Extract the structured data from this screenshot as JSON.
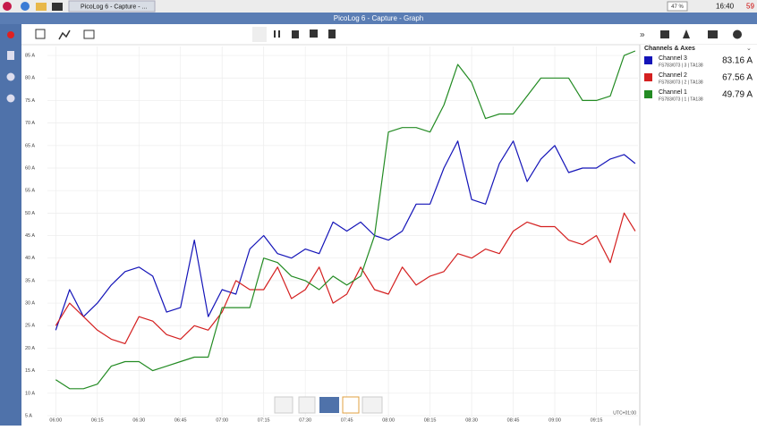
{
  "taskbar": {
    "window_tab": "PicoLog 6 - Capture - ...",
    "battery": "47 %",
    "clock": "16:40",
    "temperature": "59"
  },
  "window_title": "PicoLog 6 - Capture - Graph",
  "panel": {
    "title": "Channels & Axes",
    "channels": [
      {
        "detail": "FS783/073 | 3 | TA138",
        "reading": "83.16 A"
      },
      {
        "detail": "FS783/073 | 2 | TA138",
        "reading": "67.56 A"
      },
      {
        "detail": "FS783/073 | 1 | TA138",
        "reading": "49.79 A"
      }
    ]
  },
  "chart_data": {
    "type": "line",
    "timezone": "UTC+01:00",
    "grid": true,
    "x": [
      "06:00",
      "06:05",
      "06:10",
      "06:15",
      "06:20",
      "06:25",
      "06:30",
      "06:35",
      "06:40",
      "06:45",
      "06:50",
      "06:55",
      "07:00",
      "07:05",
      "07:10",
      "07:15",
      "07:20",
      "07:25",
      "07:30",
      "07:35",
      "07:40",
      "07:45",
      "07:50",
      "07:55",
      "08:00",
      "08:05",
      "08:10",
      "08:15",
      "08:20",
      "08:25",
      "08:30",
      "08:35",
      "08:40",
      "08:45",
      "08:50",
      "08:55",
      "09:00",
      "09:05",
      "09:10",
      "09:15",
      "09:20",
      "09:25",
      "09:29"
    ],
    "xlim": [
      "05:57",
      "09:30"
    ],
    "xticks": [
      "06:00",
      "06:15",
      "06:30",
      "06:45",
      "07:00",
      "07:15",
      "07:30",
      "07:45",
      "08:00",
      "08:15",
      "08:30",
      "08:45",
      "09:00",
      "09:15"
    ],
    "ylim": [
      4.6,
      87
    ],
    "yticks": [
      {
        "value": 5,
        "label": "5 A"
      },
      {
        "value": 10,
        "label": "10 A"
      },
      {
        "value": 15,
        "label": "15 A"
      },
      {
        "value": 20,
        "label": "20 A"
      },
      {
        "value": 25,
        "label": "25 A"
      },
      {
        "value": 30,
        "label": "30 A"
      },
      {
        "value": 35,
        "label": "35 A"
      },
      {
        "value": 40,
        "label": "40 A"
      },
      {
        "value": 45,
        "label": "45 A"
      },
      {
        "value": 50,
        "label": "50 A"
      },
      {
        "value": 55,
        "label": "55 A"
      },
      {
        "value": 60,
        "label": "60 A"
      },
      {
        "value": 65,
        "label": "65 A"
      },
      {
        "value": 70,
        "label": "70 A"
      },
      {
        "value": 75,
        "label": "75 A"
      },
      {
        "value": 80,
        "label": "80 A"
      },
      {
        "value": 85,
        "label": "85 A"
      }
    ],
    "series": [
      {
        "name": "Channel 3",
        "color": "#1414b8",
        "values": [
          24,
          33,
          27,
          30,
          34,
          37,
          38,
          36,
          28,
          29,
          44,
          27,
          33,
          32,
          42,
          45,
          41,
          40,
          42,
          41,
          48,
          46,
          48,
          45,
          44,
          46,
          52,
          52,
          60,
          66,
          53,
          52,
          61,
          66,
          57,
          62,
          65,
          59,
          60,
          60,
          62,
          63,
          61
        ]
      },
      {
        "name": "Channel 2",
        "color": "#d42020",
        "values": [
          25,
          30,
          27,
          24,
          22,
          21,
          27,
          26,
          23,
          22,
          25,
          24,
          28,
          35,
          33,
          33,
          38,
          31,
          33,
          38,
          30,
          32,
          38,
          33,
          32,
          38,
          34,
          36,
          37,
          41,
          40,
          42,
          41,
          46,
          48,
          47,
          47,
          44,
          43,
          45,
          39,
          50,
          46
        ]
      },
      {
        "name": "Channel 1",
        "color": "#238b23",
        "values": [
          13,
          11,
          11,
          12,
          16,
          17,
          17,
          15,
          16,
          17,
          18,
          18,
          29,
          29,
          29,
          40,
          39,
          36,
          35,
          33,
          36,
          34,
          36,
          45,
          68,
          69,
          69,
          68,
          74,
          83,
          79,
          71,
          72,
          72,
          76,
          80,
          80,
          80,
          75,
          75,
          76,
          85,
          86
        ]
      }
    ]
  }
}
